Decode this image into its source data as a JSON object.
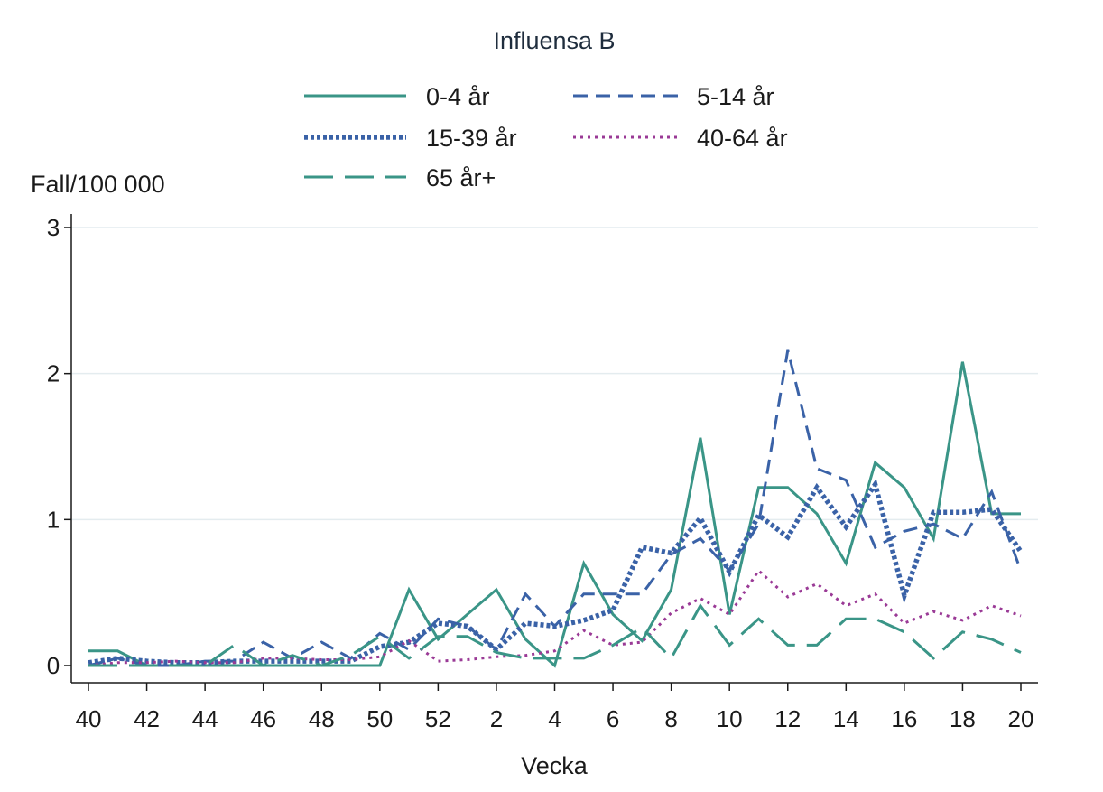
{
  "chart_data": {
    "type": "line",
    "title": "Influensa B",
    "ylabel": "Fall/100 000",
    "xlabel": "Vecka",
    "ylim": [
      0,
      3
    ],
    "yticks": [
      0,
      1,
      2,
      3
    ],
    "grid": true,
    "legend_position": "top",
    "x": [
      "40",
      "41",
      "42",
      "43",
      "44",
      "45",
      "46",
      "47",
      "48",
      "49",
      "50",
      "51",
      "52",
      "1",
      "2",
      "3",
      "4",
      "5",
      "6",
      "7",
      "8",
      "9",
      "10",
      "11",
      "12",
      "13",
      "14",
      "15",
      "16",
      "17",
      "18",
      "19",
      "20"
    ],
    "xtick_labels": [
      "40",
      "42",
      "44",
      "46",
      "48",
      "50",
      "52",
      "2",
      "4",
      "6",
      "8",
      "10",
      "12",
      "14",
      "16",
      "18",
      "20"
    ],
    "series": [
      {
        "name": "0-4 år",
        "color": "#3a9587",
        "style": "solid",
        "values": [
          0.1,
          0.1,
          0,
          0,
          0,
          0,
          0,
          0,
          0,
          0,
          0,
          0.52,
          0.18,
          0.35,
          0.52,
          0.18,
          0,
          0.7,
          0.35,
          0.17,
          0.52,
          1.56,
          0.35,
          1.22,
          1.22,
          1.04,
          0.7,
          1.39,
          1.22,
          0.87,
          2.08,
          1.04,
          1.04
        ]
      },
      {
        "name": "5-14 år",
        "color": "#3a62a7",
        "style": "dash",
        "values": [
          0,
          0.05,
          0,
          0,
          0.03,
          0.03,
          0.16,
          0.05,
          0.16,
          0.05,
          0.22,
          0.11,
          0.32,
          0.27,
          0.11,
          0.49,
          0.27,
          0.49,
          0.49,
          0.49,
          0.76,
          0.87,
          0.65,
          0.97,
          2.16,
          1.35,
          1.27,
          0.81,
          0.92,
          0.97,
          0.87,
          1.19,
          0.65
        ]
      },
      {
        "name": "15-39 år",
        "color": "#3a62a7",
        "style": "dot",
        "values": [
          0.02,
          0.05,
          0.03,
          0.02,
          0.02,
          0.03,
          0.03,
          0.03,
          0.03,
          0.03,
          0.13,
          0.16,
          0.29,
          0.27,
          0.11,
          0.29,
          0.27,
          0.31,
          0.38,
          0.81,
          0.77,
          1.01,
          0.64,
          1.03,
          0.88,
          1.22,
          0.95,
          1.24,
          0.48,
          1.05,
          1.05,
          1.07,
          0.78
        ]
      },
      {
        "name": "40-64 år",
        "color": "#9a3a96",
        "style": "smalldot",
        "values": [
          0,
          0.02,
          0.02,
          0.03,
          0.02,
          0.02,
          0.05,
          0.05,
          0.04,
          0.04,
          0.06,
          0.17,
          0.03,
          0.04,
          0.06,
          0.07,
          0.1,
          0.24,
          0.14,
          0.16,
          0.36,
          0.46,
          0.35,
          0.65,
          0.47,
          0.56,
          0.41,
          0.49,
          0.29,
          0.37,
          0.31,
          0.41,
          0.34
        ]
      },
      {
        "name": "65 år+",
        "color": "#3a9587",
        "style": "longdash",
        "values": [
          0,
          0,
          0,
          0,
          0,
          0.14,
          0,
          0.07,
          0,
          0.07,
          0.2,
          0.05,
          0.2,
          0.2,
          0.09,
          0.05,
          0.05,
          0.05,
          0.14,
          0.26,
          0.05,
          0.41,
          0.14,
          0.32,
          0.14,
          0.14,
          0.32,
          0.32,
          0.23,
          0.05,
          0.23,
          0.18,
          0.09
        ]
      }
    ]
  }
}
